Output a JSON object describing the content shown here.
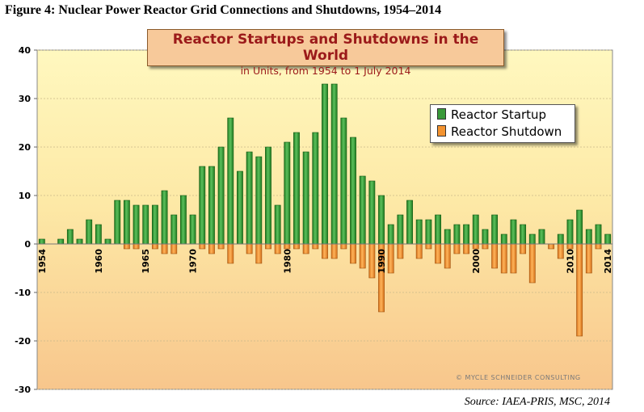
{
  "figure_title": "Figure 4: Nuclear Power Reactor Grid Connections and Shutdowns, 1954–2014",
  "source": "Source: IAEA-PRIS, MSC, 2014",
  "watermark": "© MYCLE SCHNEIDER CONSULTING",
  "colors": {
    "startup": "#3a9a3a",
    "shutdown": "#f39330",
    "bg_top": "#fff7b8",
    "bg_bottom": "#f9c98e"
  },
  "chart_data": {
    "type": "bar",
    "title": "Reactor Startups and Shutdowns in the World",
    "subtitle": "in Units, from 1954 to 1 July 2014",
    "ylim": [
      -30,
      40
    ],
    "yticks": [
      -30,
      -20,
      -10,
      0,
      10,
      20,
      30,
      40
    ],
    "xticks": [
      1954,
      1960,
      1965,
      1970,
      1980,
      1990,
      2000,
      2010,
      2014
    ],
    "legend_position": "top-right",
    "categories": [
      1954,
      1955,
      1956,
      1957,
      1958,
      1959,
      1960,
      1961,
      1962,
      1963,
      1964,
      1965,
      1966,
      1967,
      1968,
      1969,
      1970,
      1971,
      1972,
      1973,
      1974,
      1975,
      1976,
      1977,
      1978,
      1979,
      1980,
      1981,
      1982,
      1983,
      1984,
      1985,
      1986,
      1987,
      1988,
      1989,
      1990,
      1991,
      1992,
      1993,
      1994,
      1995,
      1996,
      1997,
      1998,
      1999,
      2000,
      2001,
      2002,
      2003,
      2004,
      2005,
      2006,
      2007,
      2008,
      2009,
      2010,
      2011,
      2012,
      2013,
      2014
    ],
    "series": [
      {
        "name": "Reactor Startup",
        "values": [
          1,
          0,
          1,
          3,
          1,
          5,
          4,
          1,
          9,
          9,
          8,
          8,
          8,
          11,
          6,
          10,
          6,
          16,
          16,
          20,
          26,
          15,
          19,
          18,
          20,
          8,
          21,
          23,
          19,
          23,
          33,
          33,
          26,
          22,
          14,
          13,
          10,
          4,
          6,
          9,
          5,
          5,
          6,
          3,
          4,
          4,
          6,
          3,
          6,
          2,
          5,
          4,
          2,
          3,
          0,
          2,
          5,
          7,
          3,
          4,
          2
        ]
      },
      {
        "name": "Reactor Shutdown",
        "values": [
          0,
          0,
          0,
          0,
          0,
          0,
          0,
          0,
          0,
          -1,
          -1,
          0,
          -1,
          -2,
          -2,
          0,
          0,
          -1,
          -2,
          -1,
          -4,
          0,
          -2,
          -4,
          -1,
          -2,
          -1,
          -1,
          -2,
          -1,
          -3,
          -3,
          -1,
          -4,
          -5,
          -7,
          -14,
          -6,
          -3,
          0,
          -3,
          -1,
          -4,
          -5,
          -2,
          -2,
          -1,
          -1,
          -5,
          -6,
          -6,
          -2,
          -8,
          0,
          -1,
          -3,
          -1,
          -19,
          -6,
          -1,
          0
        ]
      }
    ]
  }
}
